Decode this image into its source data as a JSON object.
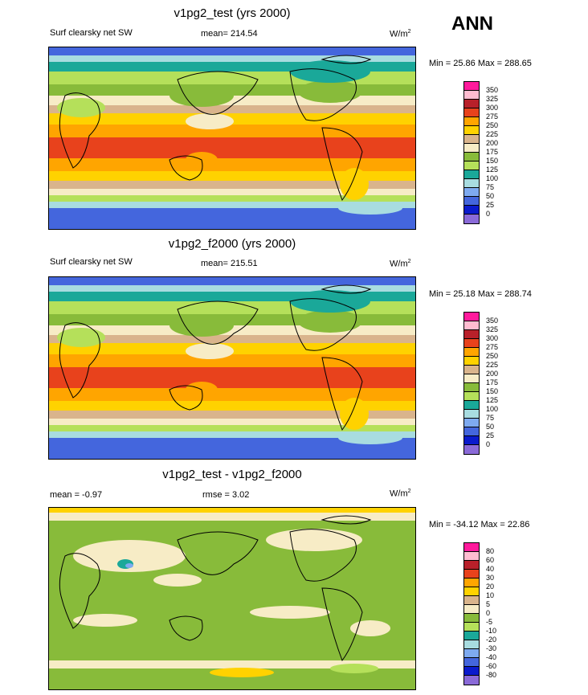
{
  "season": "ANN",
  "panels": [
    {
      "title": "v1pg2_test (yrs 2000)",
      "left_label": "Surf clearsky net SW",
      "center_label": "mean= 214.54",
      "units": "W/m",
      "units_sup": "2",
      "min_max": "Min =  25.86 Max = 288.65",
      "levels": [
        "350",
        "325",
        "300",
        "275",
        "250",
        "225",
        "200",
        "175",
        "150",
        "125",
        "100",
        "75",
        "50",
        "25",
        "0"
      ],
      "colors": [
        "#ff1a9c",
        "#ffbcd0",
        "#b8202a",
        "#e8421c",
        "#ffa500",
        "#ffd200",
        "#d9b48c",
        "#f7ecc6",
        "#88bb3a",
        "#b5e05a",
        "#1aa899",
        "#a8dce0",
        "#7eaaf0",
        "#4466dd",
        "#0a1acc",
        "#8a6ad8"
      ]
    },
    {
      "title": "v1pg2_f2000 (yrs 2000)",
      "left_label": "Surf clearsky net SW",
      "center_label": "mean= 215.51",
      "units": "W/m",
      "units_sup": "2",
      "min_max": "Min =  25.18 Max = 288.74",
      "levels": [
        "350",
        "325",
        "300",
        "275",
        "250",
        "225",
        "200",
        "175",
        "150",
        "125",
        "100",
        "75",
        "50",
        "25",
        "0"
      ],
      "colors": [
        "#ff1a9c",
        "#ffbcd0",
        "#b8202a",
        "#e8421c",
        "#ffa500",
        "#ffd200",
        "#d9b48c",
        "#f7ecc6",
        "#88bb3a",
        "#b5e05a",
        "#1aa899",
        "#a8dce0",
        "#7eaaf0",
        "#4466dd",
        "#0a1acc",
        "#8a6ad8"
      ]
    },
    {
      "title": "v1pg2_test - v1pg2_f2000",
      "left_label": "mean =  -0.97",
      "center_label": "rmse =   3.02",
      "units": "W/m",
      "units_sup": "2",
      "min_max": "Min = -34.12 Max =  22.86",
      "levels": [
        "80",
        "60",
        "40",
        "30",
        "20",
        "10",
        "5",
        "0",
        "-5",
        "-10",
        "-20",
        "-30",
        "-40",
        "-60",
        "-80"
      ],
      "colors": [
        "#ff1a9c",
        "#ffbcd0",
        "#b8202a",
        "#e8421c",
        "#ffa500",
        "#ffd200",
        "#d9b48c",
        "#f7ecc6",
        "#88bb3a",
        "#b5e05a",
        "#1aa899",
        "#a8dce0",
        "#7eaaf0",
        "#4466dd",
        "#0a1acc",
        "#8a6ad8"
      ]
    }
  ]
}
